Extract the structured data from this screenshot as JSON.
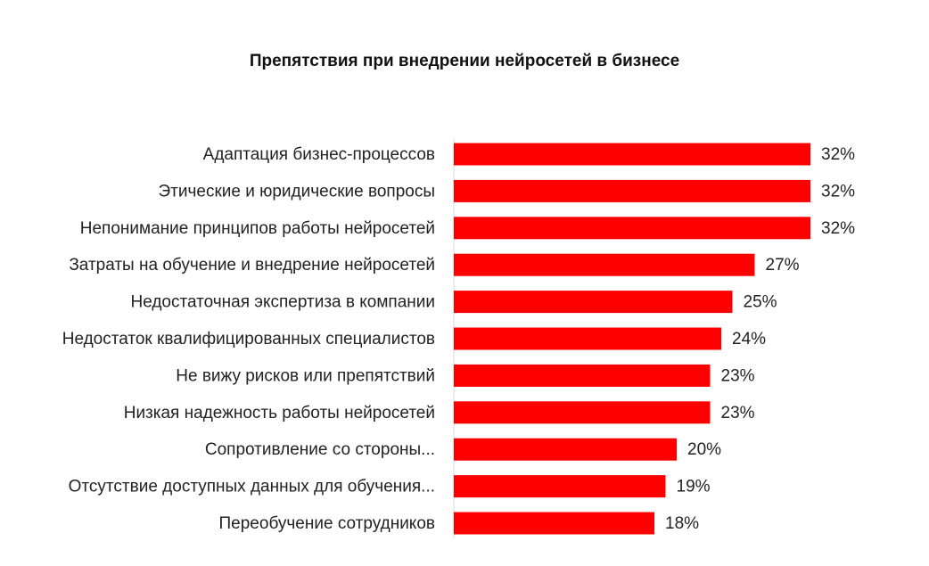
{
  "chart_data": {
    "type": "bar",
    "orientation": "horizontal",
    "title": "Препятствия при внедрении нейросетей в бизнесе",
    "categories": [
      "Адаптация бизнес-процессов",
      "Этические и юридические вопросы",
      "Непонимание принципов работы нейросетей",
      "Затраты на обучение и внедрение нейросетей",
      "Недостаточная экспертиза в компании",
      "Недостаток квалифицированных специалистов",
      "Не вижу рисков или препятствий",
      "Низкая надежность работы нейросетей",
      "Сопротивление со стороны...",
      "Отсутствие доступных данных для обучения...",
      "Переобучение сотрудников"
    ],
    "values": [
      32,
      32,
      32,
      27,
      25,
      24,
      23,
      23,
      20,
      19,
      18
    ],
    "value_labels": [
      "32%",
      "32%",
      "32%",
      "27%",
      "25%",
      "24%",
      "23%",
      "23%",
      "20%",
      "19%",
      "18%"
    ],
    "unit": "%",
    "xlim": [
      0,
      32
    ],
    "bar_color": "#ff0000",
    "grid": false,
    "legend": "none"
  }
}
